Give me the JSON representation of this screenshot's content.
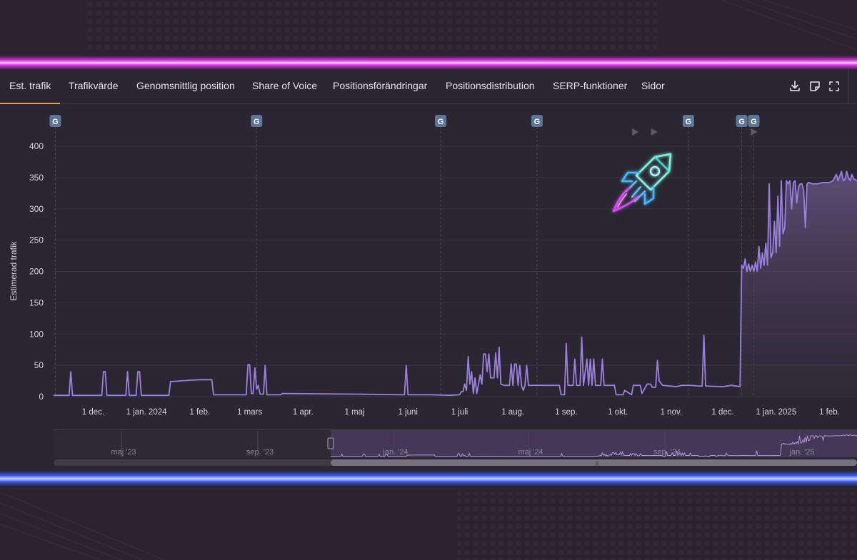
{
  "tabs": [
    {
      "label": "Est. trafik",
      "active": true
    },
    {
      "label": "Trafikvärde",
      "active": false
    },
    {
      "label": "Genomsnittlig position",
      "active": false
    },
    {
      "label": "Share of Voice",
      "active": false
    },
    {
      "label": "Positionsförändringar",
      "active": false
    },
    {
      "label": "Positionsdistribution",
      "active": false
    },
    {
      "label": "SERP-funktioner",
      "active": false
    },
    {
      "label": "Sidor",
      "active": false
    }
  ],
  "toolbar_icons": [
    "download-icon",
    "note-icon",
    "fullscreen-icon"
  ],
  "colors": {
    "accent": "#e79a45",
    "series": "#9b7fe0",
    "marker": "#5d7697",
    "neon_top": "#e536f0",
    "neon_bottom": "#3a56f0"
  },
  "google_marker_label": "G",
  "navigator": {
    "labels": [
      "maj '23",
      "sep. '23",
      "jan. '24",
      "maj '24",
      "sep. '24",
      "jan. '25"
    ],
    "handle_glyph": "|||"
  },
  "chart_data": {
    "type": "line",
    "ylabel": "Estimerad trafik",
    "ylim": [
      0,
      400
    ],
    "yticks": [
      0,
      50,
      100,
      150,
      200,
      250,
      300,
      350,
      400
    ],
    "x_range": [
      "2023-11-08",
      "2025-02-17"
    ],
    "xtick_labels": [
      {
        "date": "2023-12-01",
        "label": "1 dec."
      },
      {
        "date": "2024-01-01",
        "label": "1 jan. 2024"
      },
      {
        "date": "2024-02-01",
        "label": "1 feb."
      },
      {
        "date": "2024-03-01",
        "label": "1 mars"
      },
      {
        "date": "2024-04-01",
        "label": "1 apr."
      },
      {
        "date": "2024-05-01",
        "label": "1 maj"
      },
      {
        "date": "2024-06-01",
        "label": "1 juni"
      },
      {
        "date": "2024-07-01",
        "label": "1 juli"
      },
      {
        "date": "2024-08-01",
        "label": "1 aug."
      },
      {
        "date": "2024-09-01",
        "label": "1 sep."
      },
      {
        "date": "2024-10-01",
        "label": "1 okt."
      },
      {
        "date": "2024-11-01",
        "label": "1 nov."
      },
      {
        "date": "2024-12-01",
        "label": "1 dec."
      },
      {
        "date": "2025-01-01",
        "label": "1 jan. 2025"
      },
      {
        "date": "2025-02-01",
        "label": "1 feb."
      }
    ],
    "google_updates": [
      "2023-11-09",
      "2024-03-05",
      "2024-06-20",
      "2024-08-15",
      "2024-11-11",
      "2024-12-12",
      "2024-12-19"
    ],
    "grid": true,
    "series": [
      {
        "values": [
          [
            "2023-11-08",
            2
          ],
          [
            "2023-11-17",
            2
          ],
          [
            "2023-11-18",
            40
          ],
          [
            "2023-11-19",
            2
          ],
          [
            "2023-12-06",
            2
          ],
          [
            "2023-12-07",
            40
          ],
          [
            "2023-12-08",
            40
          ],
          [
            "2023-12-09",
            2
          ],
          [
            "2023-12-20",
            2
          ],
          [
            "2023-12-21",
            40
          ],
          [
            "2023-12-22",
            2
          ],
          [
            "2023-12-26",
            2
          ],
          [
            "2023-12-27",
            40
          ],
          [
            "2023-12-28",
            40
          ],
          [
            "2023-12-29",
            2
          ],
          [
            "2024-01-14",
            2
          ],
          [
            "2024-01-15",
            24
          ],
          [
            "2024-01-20",
            25
          ],
          [
            "2024-01-25",
            26
          ],
          [
            "2024-02-01",
            27
          ],
          [
            "2024-02-08",
            27
          ],
          [
            "2024-02-09",
            3
          ],
          [
            "2024-02-28",
            3
          ],
          [
            "2024-02-29",
            51
          ],
          [
            "2024-03-01",
            51
          ],
          [
            "2024-03-02",
            5
          ],
          [
            "2024-03-03",
            5
          ],
          [
            "2024-03-04",
            46
          ],
          [
            "2024-03-05",
            12
          ],
          [
            "2024-03-06",
            18
          ],
          [
            "2024-03-07",
            4
          ],
          [
            "2024-03-09",
            4
          ],
          [
            "2024-03-10",
            50
          ],
          [
            "2024-03-11",
            3
          ],
          [
            "2024-03-19",
            3
          ],
          [
            "2024-03-20",
            5
          ],
          [
            "2024-05-01",
            4
          ],
          [
            "2024-05-30",
            3
          ],
          [
            "2024-05-31",
            50
          ],
          [
            "2024-06-01",
            3
          ],
          [
            "2024-06-15",
            3
          ],
          [
            "2024-06-25",
            2
          ],
          [
            "2024-07-01",
            3
          ],
          [
            "2024-07-02",
            8
          ],
          [
            "2024-07-03",
            8
          ],
          [
            "2024-07-04",
            20
          ],
          [
            "2024-07-05",
            10
          ],
          [
            "2024-07-06",
            64
          ],
          [
            "2024-07-07",
            20
          ],
          [
            "2024-07-08",
            40
          ],
          [
            "2024-07-09",
            5
          ],
          [
            "2024-07-10",
            30
          ],
          [
            "2024-07-11",
            5
          ],
          [
            "2024-07-13",
            35
          ],
          [
            "2024-07-14",
            20
          ],
          [
            "2024-07-15",
            68
          ],
          [
            "2024-07-16",
            68
          ],
          [
            "2024-07-17",
            40
          ],
          [
            "2024-07-18",
            68
          ],
          [
            "2024-07-19",
            30
          ],
          [
            "2024-07-21",
            30
          ],
          [
            "2024-07-22",
            70
          ],
          [
            "2024-07-23",
            30
          ],
          [
            "2024-07-24",
            79
          ],
          [
            "2024-07-25",
            20
          ],
          [
            "2024-07-27",
            18
          ],
          [
            "2024-07-30",
            18
          ],
          [
            "2024-07-31",
            52
          ],
          [
            "2024-08-01",
            18
          ],
          [
            "2024-08-02",
            52
          ],
          [
            "2024-08-03",
            52
          ],
          [
            "2024-08-04",
            18
          ],
          [
            "2024-08-05",
            50
          ],
          [
            "2024-08-06",
            18
          ],
          [
            "2024-08-07",
            10
          ],
          [
            "2024-08-08",
            18
          ],
          [
            "2024-08-09",
            50
          ],
          [
            "2024-08-10",
            18
          ],
          [
            "2024-08-24",
            18
          ],
          [
            "2024-08-28",
            18
          ],
          [
            "2024-08-29",
            3
          ],
          [
            "2024-08-31",
            3
          ],
          [
            "2024-09-01",
            85
          ],
          [
            "2024-09-02",
            18
          ],
          [
            "2024-09-05",
            18
          ],
          [
            "2024-09-06",
            60
          ],
          [
            "2024-09-07",
            18
          ],
          [
            "2024-09-09",
            18
          ],
          [
            "2024-09-10",
            95
          ],
          [
            "2024-09-11",
            18
          ],
          [
            "2024-09-13",
            60
          ],
          [
            "2024-09-14",
            18
          ],
          [
            "2024-09-15",
            60
          ],
          [
            "2024-09-16",
            18
          ],
          [
            "2024-09-17",
            60
          ],
          [
            "2024-09-18",
            18
          ],
          [
            "2024-09-21",
            18
          ],
          [
            "2024-09-22",
            60
          ],
          [
            "2024-09-23",
            18
          ],
          [
            "2024-09-29",
            18
          ],
          [
            "2024-09-30",
            3
          ],
          [
            "2024-10-04",
            3
          ],
          [
            "2024-10-05",
            10
          ],
          [
            "2024-10-09",
            3
          ],
          [
            "2024-10-10",
            18
          ],
          [
            "2024-10-14",
            18
          ],
          [
            "2024-10-15",
            5
          ],
          [
            "2024-10-18",
            20
          ],
          [
            "2024-10-20",
            20
          ],
          [
            "2024-10-21",
            15
          ],
          [
            "2024-10-23",
            15
          ],
          [
            "2024-10-24",
            58
          ],
          [
            "2024-10-25",
            25
          ],
          [
            "2024-10-27",
            18
          ],
          [
            "2024-11-04",
            16
          ],
          [
            "2024-11-07",
            18
          ],
          [
            "2024-11-12",
            18
          ],
          [
            "2024-11-17",
            17
          ],
          [
            "2024-11-19",
            17
          ],
          [
            "2024-11-20",
            98
          ],
          [
            "2024-11-21",
            17
          ],
          [
            "2024-12-01",
            16
          ],
          [
            "2024-12-06",
            18
          ],
          [
            "2024-12-11",
            16
          ],
          [
            "2024-12-12",
            210
          ],
          [
            "2024-12-13",
            205
          ],
          [
            "2024-12-14",
            220
          ],
          [
            "2024-12-15",
            200
          ],
          [
            "2024-12-16",
            212
          ],
          [
            "2024-12-17",
            200
          ],
          [
            "2024-12-18",
            210
          ],
          [
            "2024-12-19",
            200
          ],
          [
            "2024-12-20",
            215
          ],
          [
            "2024-12-21",
            200
          ],
          [
            "2024-12-22",
            240
          ],
          [
            "2024-12-23",
            205
          ],
          [
            "2024-12-24",
            230
          ],
          [
            "2024-12-25",
            210
          ],
          [
            "2024-12-26",
            245
          ],
          [
            "2024-12-27",
            210
          ],
          [
            "2024-12-28",
            340
          ],
          [
            "2024-12-29",
            222
          ],
          [
            "2024-12-30",
            230
          ],
          [
            "2024-12-31",
            280
          ],
          [
            "2025-01-01",
            230
          ],
          [
            "2025-01-02",
            320
          ],
          [
            "2025-01-03",
            240
          ],
          [
            "2025-01-04",
            345
          ],
          [
            "2025-01-05",
            260
          ],
          [
            "2025-01-06",
            270
          ],
          [
            "2025-01-07",
            345
          ],
          [
            "2025-01-08",
            340
          ],
          [
            "2025-01-09",
            345
          ],
          [
            "2025-01-10",
            300
          ],
          [
            "2025-01-11",
            342
          ],
          [
            "2025-01-12",
            345
          ],
          [
            "2025-01-13",
            310
          ],
          [
            "2025-01-14",
            335
          ],
          [
            "2025-01-15",
            340
          ],
          [
            "2025-01-16",
            340
          ],
          [
            "2025-01-17",
            330
          ],
          [
            "2025-01-18",
            270
          ],
          [
            "2025-01-19",
            340
          ],
          [
            "2025-01-20",
            342
          ],
          [
            "2025-01-22",
            340
          ],
          [
            "2025-01-25",
            340
          ],
          [
            "2025-01-28",
            342
          ],
          [
            "2025-02-01",
            342
          ],
          [
            "2025-02-03",
            345
          ],
          [
            "2025-02-05",
            355
          ],
          [
            "2025-02-06",
            345
          ],
          [
            "2025-02-08",
            360
          ],
          [
            "2025-02-09",
            345
          ],
          [
            "2025-02-10",
            347
          ],
          [
            "2025-02-11",
            360
          ],
          [
            "2025-02-12",
            350
          ],
          [
            "2025-02-13",
            345
          ],
          [
            "2025-02-14",
            355
          ],
          [
            "2025-02-15",
            348
          ],
          [
            "2025-02-17",
            345
          ]
        ]
      }
    ]
  }
}
